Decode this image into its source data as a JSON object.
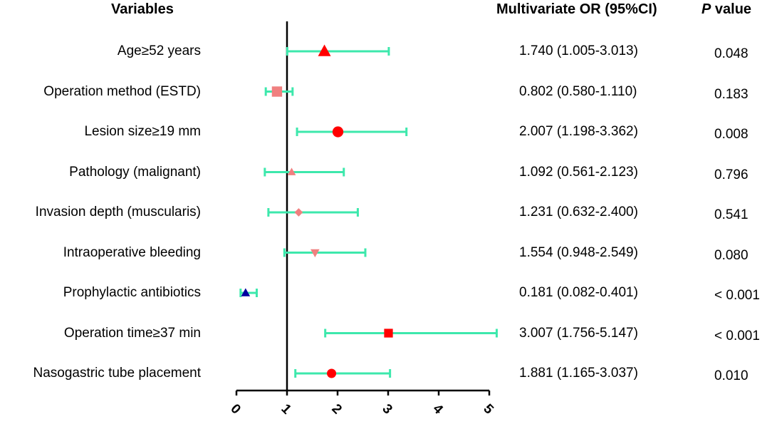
{
  "chart_data": {
    "type": "forest",
    "headers": {
      "variables": "Variables",
      "or": "Multivariate OR (95%CI)",
      "p_italic": "P",
      "p_rest": " value"
    },
    "xlim": [
      0,
      5
    ],
    "xticks": [
      "0",
      "1",
      "2",
      "3",
      "4",
      "5"
    ],
    "reference_line": 1,
    "ci_color": "#3de8ac",
    "rows": [
      {
        "label": "Age≥52 years",
        "or": 1.74,
        "lo": 1.005,
        "hi": 3.013,
        "or_text": "1.740 (1.005-3.013)",
        "p": "0.048",
        "marker": "triangle",
        "color": "#ff0000",
        "size": 1.0
      },
      {
        "label": "Operation method (ESTD)",
        "or": 0.802,
        "lo": 0.58,
        "hi": 1.11,
        "or_text": "0.802 (0.580-1.110)",
        "p": "0.183",
        "marker": "square",
        "color": "#f08080",
        "size": 1.0
      },
      {
        "label": "Lesion size≥19 mm",
        "or": 2.007,
        "lo": 1.198,
        "hi": 3.362,
        "or_text": "2.007 (1.198-3.362)",
        "p": "0.008",
        "marker": "circle",
        "color": "#ff0000",
        "size": 1.0
      },
      {
        "label": "Pathology (malignant)",
        "or": 1.092,
        "lo": 0.561,
        "hi": 2.123,
        "or_text": "1.092 (0.561-2.123)",
        "p": "0.796",
        "marker": "triangle",
        "color": "#f08080",
        "size": 0.65
      },
      {
        "label": "Invasion depth (muscularis)",
        "or": 1.231,
        "lo": 0.632,
        "hi": 2.4,
        "or_text": "1.231 (0.632-2.400)",
        "p": "0.541",
        "marker": "diamond",
        "color": "#f08080",
        "size": 0.65
      },
      {
        "label": "Intraoperative bleeding",
        "or": 1.554,
        "lo": 0.948,
        "hi": 2.549,
        "or_text": "1.554 (0.948-2.549)",
        "p": "0.080",
        "marker": "triangle-down",
        "color": "#f08080",
        "size": 0.7
      },
      {
        "label": "Prophylactic antibiotics",
        "or": 0.181,
        "lo": 0.082,
        "hi": 0.401,
        "or_text": "0.181 (0.082-0.401)",
        "p": "< 0.001",
        "marker": "triangle",
        "color": "#0000a0",
        "size": 0.7
      },
      {
        "label": "Operation time≥37 min",
        "or": 3.007,
        "lo": 1.756,
        "hi": 5.147,
        "or_text": "3.007 (1.756-5.147)",
        "p": "< 0.001",
        "marker": "square",
        "color": "#ff0000",
        "size": 0.85
      },
      {
        "label": "Nasogastric tube placement",
        "or": 1.881,
        "lo": 1.165,
        "hi": 3.037,
        "or_text": "1.881 (1.165-3.037)",
        "p": "0.010",
        "marker": "circle",
        "color": "#ff0000",
        "size": 0.85
      }
    ]
  }
}
